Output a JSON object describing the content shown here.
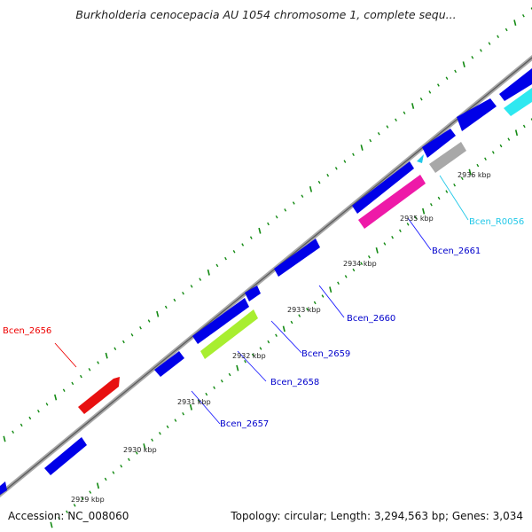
{
  "title": "Burkholderia cenocepacia AU 1054 chromosome 1, complete sequ...",
  "footer": {
    "accession": "Accession: NC_008060",
    "stats": "Topology: circular; Length: 3,294,563 bp; Genes: 3,034"
  },
  "colors": {
    "backbone": "#888888",
    "tick": "#138a13",
    "cds": "#0000e8",
    "leader": "#1a1aff"
  },
  "kbp_labels": [
    "2929 kbp",
    "2930 kbp",
    "2931 kbp",
    "2932 kbp",
    "2933 kbp",
    "2934 kbp",
    "2935 kbp",
    "2936 kbp"
  ],
  "gene_labels": [
    {
      "name": "Bcen_2656",
      "color": "#ee0000"
    },
    {
      "name": "Bcen_2657",
      "color": "#0000cc"
    },
    {
      "name": "Bcen_2658",
      "color": "#0000cc"
    },
    {
      "name": "Bcen_2659",
      "color": "#0000cc"
    },
    {
      "name": "Bcen_2660",
      "color": "#0000cc"
    },
    {
      "name": "Bcen_2661",
      "color": "#0000cc"
    },
    {
      "name": "Bcen_R0056",
      "color": "#22c8e8"
    }
  ]
}
